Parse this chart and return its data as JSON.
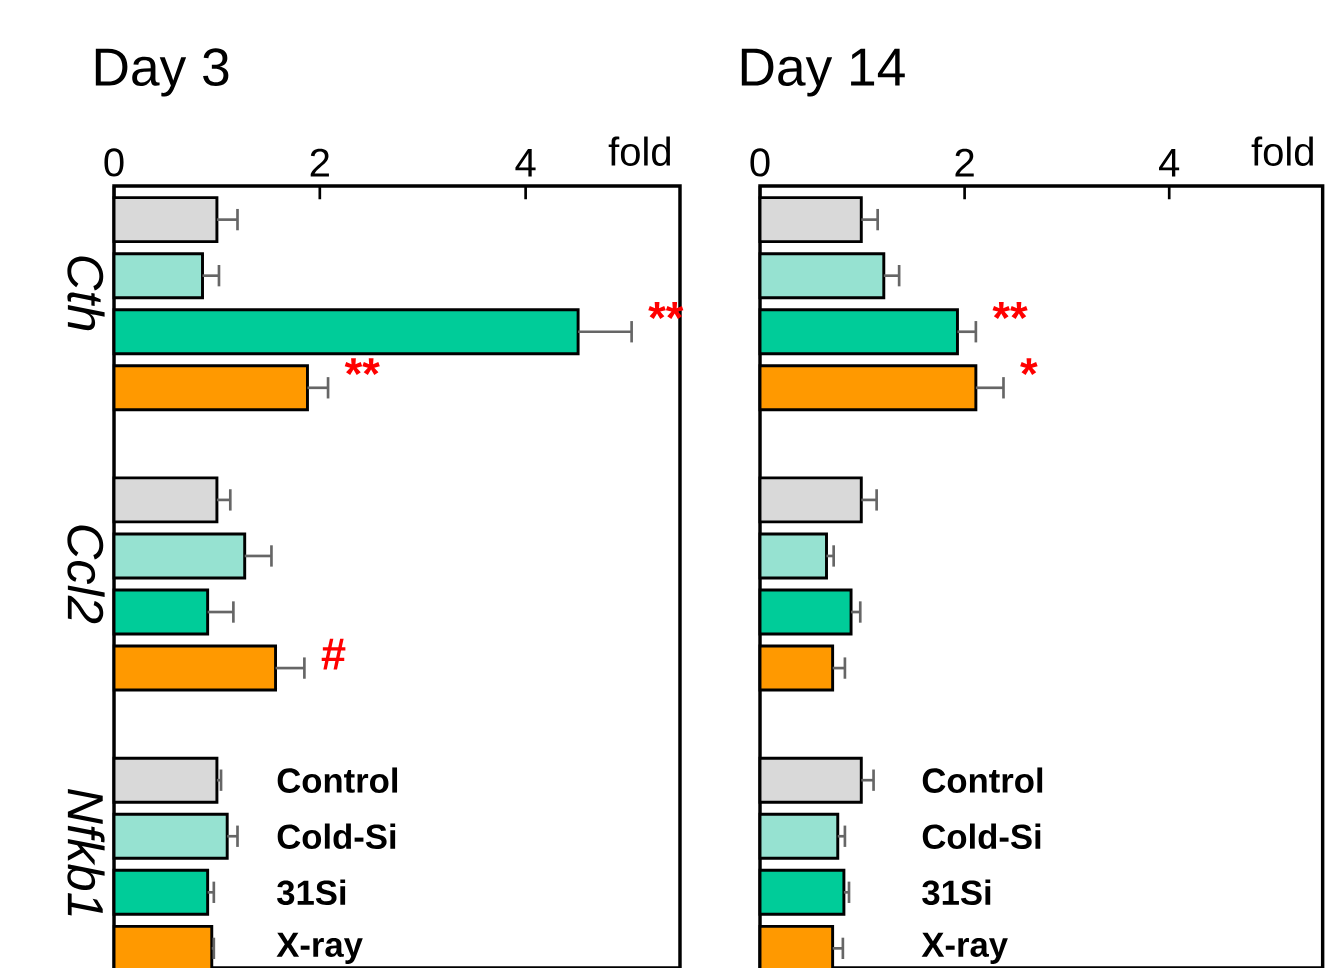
{
  "chart_data": [
    {
      "type": "bar",
      "orientation": "horizontal",
      "title": "Day 3",
      "xlabel": "fold",
      "categories": [
        "Cth",
        "Ccl2",
        "Nfkb1"
      ],
      "series": [
        {
          "name": "Control",
          "color": "#d9d9d9",
          "values": [
            1.0,
            1.0,
            1.0
          ],
          "errors": [
            0.2,
            0.13,
            0.04
          ]
        },
        {
          "name": "Cold-Si",
          "color": "#96e2d1",
          "values": [
            0.86,
            1.27,
            1.1
          ],
          "errors": [
            0.16,
            0.26,
            0.1
          ]
        },
        {
          "name": "31Si",
          "color": "#00cc99",
          "values": [
            4.51,
            0.91,
            0.91
          ],
          "errors": [
            0.52,
            0.25,
            0.06
          ]
        },
        {
          "name": "X-ray",
          "color": "#ff9900",
          "values": [
            1.88,
            1.57,
            0.95
          ],
          "errors": [
            0.2,
            0.28,
            0.02
          ]
        }
      ],
      "xlim": [
        0,
        5.5
      ],
      "xticks": [
        0,
        2,
        4
      ],
      "legend": "bottom left",
      "annotations": [
        "**",
        "**",
        "#"
      ]
    },
    {
      "type": "bar",
      "orientation": "horizontal",
      "title": "Day 14",
      "xlabel": "fold",
      "categories": [
        null,
        null,
        null
      ],
      "series": [
        {
          "name": "Control",
          "color": "#d9d9d9",
          "values": [
            0.99,
            0.99,
            0.99
          ],
          "errors": [
            0.16,
            0.15,
            0.12
          ]
        },
        {
          "name": "Cold-Si",
          "color": "#96e2d1",
          "values": [
            1.21,
            0.65,
            0.76
          ],
          "errors": [
            0.15,
            0.07,
            0.07
          ]
        },
        {
          "name": "31Si",
          "color": "#00cc99",
          "values": [
            1.93,
            0.89,
            0.82
          ],
          "errors": [
            0.18,
            0.09,
            0.05
          ]
        },
        {
          "name": "X-ray",
          "color": "#ff9900",
          "values": [
            2.11,
            0.71,
            0.71
          ],
          "errors": [
            0.27,
            0.12,
            0.1
          ]
        }
      ],
      "xlim": [
        0,
        5.5
      ],
      "xticks": [
        0,
        2,
        4
      ],
      "legend": "bottom left",
      "annotations": [
        "**",
        "*"
      ]
    }
  ]
}
